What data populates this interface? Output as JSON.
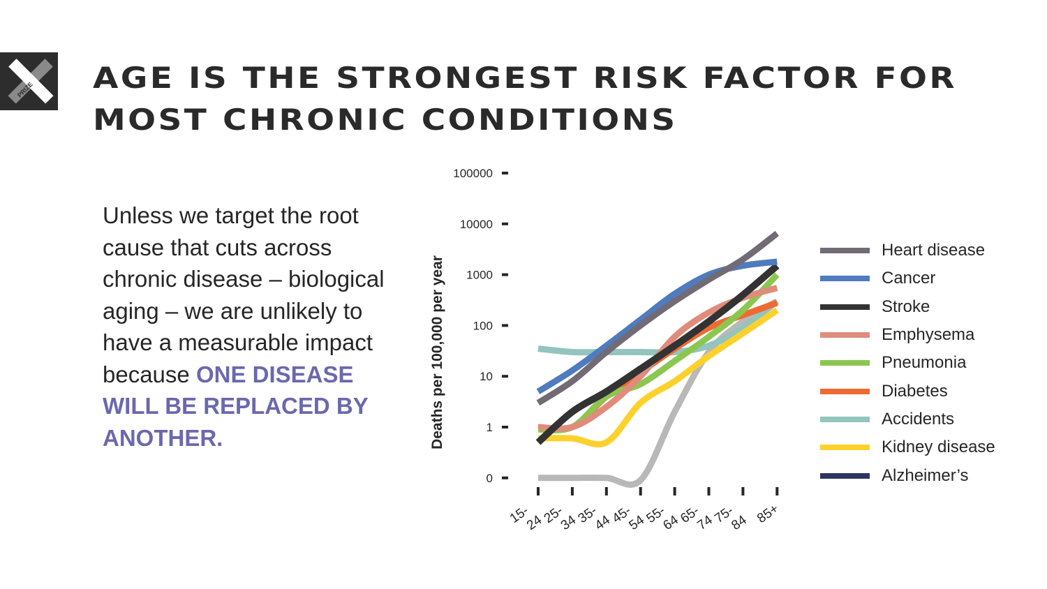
{
  "slide": {
    "title_lines": [
      "AGE IS THE STRONGEST RISK FACTOR FOR",
      "MOST CHRONIC CONDITIONS"
    ],
    "logo_text": "PRIZE",
    "body_plain": "Unless we target the root cause that cuts across chronic disease – biological aging – we are unlikely to have a measurable impact because ",
    "body_highlight": "ONE DISEASE WILL BE REPLACED BY ANOTHER.",
    "highlight_color": "#6b68ae"
  },
  "chart_data": {
    "type": "line",
    "title": "",
    "xlabel": "",
    "ylabel": "Deaths per 100,000 per year",
    "yscale": "log",
    "ytick_labels": [
      "0",
      "1",
      "10",
      "100",
      "1000",
      "10000",
      "100000"
    ],
    "ytick_values": [
      0.1,
      1,
      10,
      100,
      1000,
      10000,
      100000
    ],
    "categories": [
      [
        "15-",
        "24"
      ],
      [
        "25-",
        "34"
      ],
      [
        "35-",
        "44"
      ],
      [
        "45-",
        "54"
      ],
      [
        "55-",
        "64"
      ],
      [
        "65-",
        "74"
      ],
      [
        "75-",
        "84"
      ],
      [
        "85+"
      ]
    ],
    "legend_position": "right",
    "series": [
      {
        "name": "Heart disease",
        "color": "#726a75",
        "values": [
          3,
          8,
          30,
          100,
          300,
          800,
          2000,
          6500
        ]
      },
      {
        "name": "Cancer",
        "color": "#4f7bbf",
        "values": [
          5,
          13,
          40,
          130,
          420,
          1000,
          1500,
          1800
        ]
      },
      {
        "name": "Stroke",
        "color": "#333333",
        "values": [
          0.5,
          2,
          5,
          14,
          40,
          120,
          400,
          1500
        ]
      },
      {
        "name": "Emphysema",
        "color": "#e08c7c",
        "values": [
          1,
          1,
          2.5,
          10,
          60,
          180,
          350,
          550
        ]
      },
      {
        "name": "Pneumonia",
        "color": "#8bc750",
        "values": [
          0.9,
          1,
          4,
          7,
          20,
          60,
          200,
          1000
        ]
      },
      {
        "name": "Diabetes",
        "color": "#ef6a33",
        "values": [
          1,
          1,
          4,
          12,
          35,
          90,
          160,
          280
        ]
      },
      {
        "name": "Accidents",
        "color": "#93c4bd",
        "values": [
          35,
          30,
          30,
          30,
          30,
          40,
          90,
          300
        ]
      },
      {
        "name": "Kidney disease",
        "color": "#fdd12c",
        "values": [
          0.6,
          0.6,
          0.5,
          3,
          8,
          25,
          70,
          200
        ]
      },
      {
        "name": "Alzheimer's",
        "color": "#2e3561",
        "line_color": "#b8b8b8",
        "values": [
          0.1,
          0.1,
          0.1,
          0.09,
          2,
          30,
          120,
          300
        ]
      }
    ]
  }
}
